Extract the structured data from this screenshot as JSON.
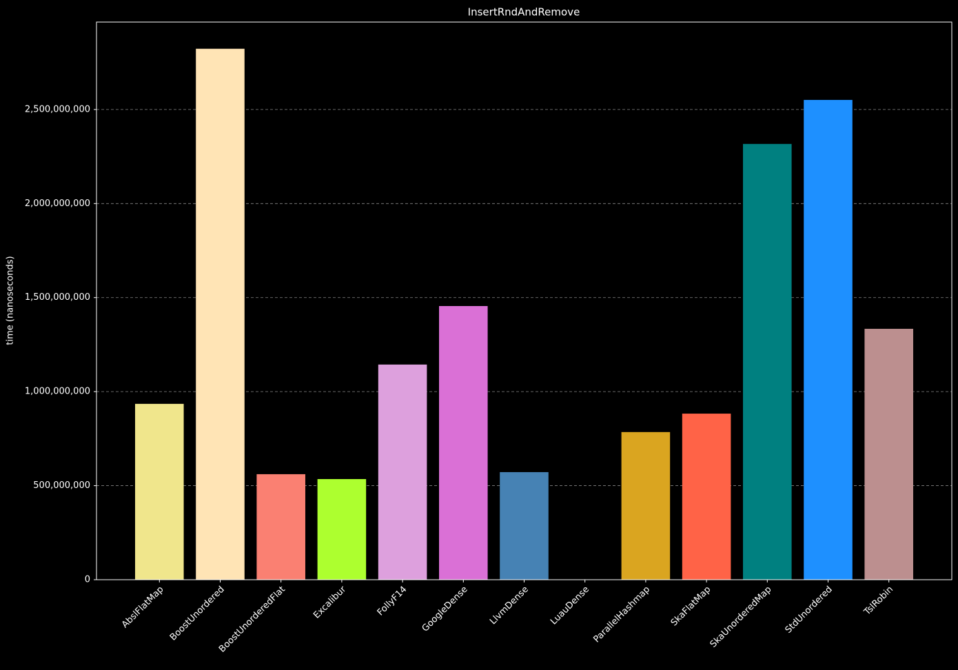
{
  "chart_data": {
    "type": "bar",
    "title": "InsertRndAndRemove",
    "y_label": "time (nanoseconds)",
    "categories": [
      "AbslFlatMap",
      "BoostUnordered",
      "BoostUnorderedFlat",
      "Excalibur",
      "FollyF14",
      "GoogleDense",
      "LlvmDense",
      "LuauDense",
      "ParallelHashmap",
      "SkaFlatMap",
      "SkaUnorderedMap",
      "StdUnordered",
      "TslRobin"
    ],
    "values": [
      935000000,
      2823000000,
      561000000,
      535000000,
      1144000000,
      1455000000,
      572000000,
      0,
      785000000,
      883000000,
      2317000000,
      2551000000,
      1334000000
    ],
    "colors": [
      "#f0e68c",
      "#ffe4b5",
      "#fa8072",
      "#adff2f",
      "#dda0dd",
      "#da70d6",
      "#4682b4",
      "#7b68ee",
      "#daa520",
      "#ff6347",
      "#008080",
      "#1e90ff",
      "#bc8f8f"
    ],
    "ylim": [
      0,
      2965000000
    ],
    "yticks": [
      0,
      {
        "value": 500000000,
        "label": "500,000,000"
      },
      {
        "value": 1000000000,
        "label": "1,000,000,000"
      },
      {
        "value": 1500000000,
        "label": "1,500,000,000"
      },
      {
        "value": 2000000000,
        "label": "2,000,000,000"
      },
      {
        "value": 2500000000,
        "label": "2,500,000,000"
      }
    ],
    "grid": true
  }
}
